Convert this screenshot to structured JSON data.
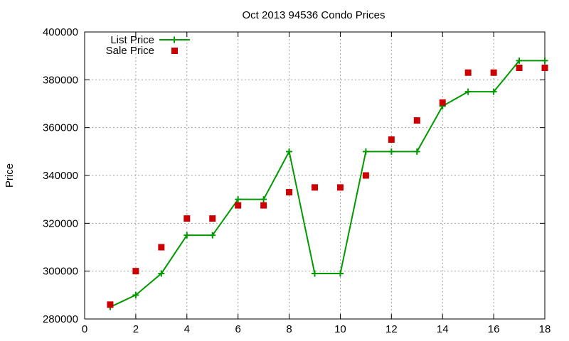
{
  "chart_data": {
    "type": "line",
    "title": "Oct 2013 94536 Condo Prices",
    "xlabel": "",
    "ylabel": "Price",
    "xlim": [
      0,
      18
    ],
    "ylim": [
      280000,
      400000
    ],
    "xticks": [
      0,
      2,
      4,
      6,
      8,
      10,
      12,
      14,
      16,
      18
    ],
    "yticks": [
      280000,
      300000,
      320000,
      340000,
      360000,
      380000,
      400000
    ],
    "grid": true,
    "legend_position": "top-left",
    "series": [
      {
        "name": "List Price",
        "style": "line-plus",
        "color": "#009900",
        "x": [
          1,
          2,
          3,
          4,
          5,
          6,
          7,
          8,
          9,
          10,
          11,
          12,
          13,
          14,
          15,
          16,
          17,
          18
        ],
        "y": [
          285000,
          290000,
          299000,
          315000,
          315000,
          330000,
          330000,
          350000,
          299000,
          299000,
          350000,
          350000,
          350000,
          369000,
          375000,
          375000,
          388000,
          388000
        ]
      },
      {
        "name": "Sale Price",
        "style": "square",
        "color": "#cc0000",
        "x": [
          1,
          2,
          3,
          4,
          5,
          6,
          7,
          8,
          9,
          10,
          11,
          12,
          13,
          14,
          15,
          16,
          17,
          18
        ],
        "y": [
          286000,
          300000,
          310000,
          322000,
          322000,
          327500,
          327500,
          333000,
          335000,
          335000,
          340000,
          355000,
          363000,
          370500,
          383000,
          383000,
          385000,
          385000
        ]
      }
    ]
  }
}
